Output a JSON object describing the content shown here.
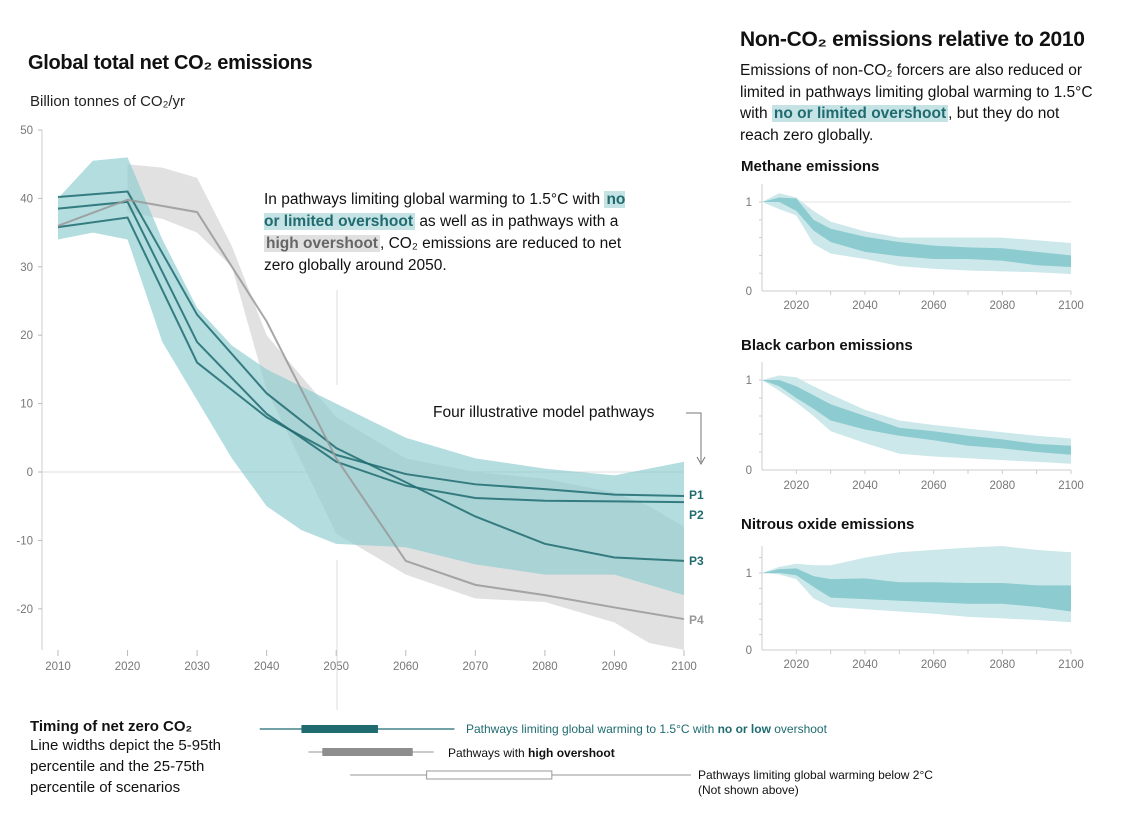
{
  "main": {
    "title": "Global total net CO₂ emissions",
    "unit_label": "Billion tonnes of CO₂/yr",
    "annotation": {
      "part1": "In pathways limiting global warming to 1.5°C with",
      "highlight1": "no or limited overshoot",
      "part2": "as well as in pathways with a",
      "highlight2": "high overshoot",
      "part3": ", CO₂ emissions are reduced to net zero globally around 2050."
    },
    "pathways_label": "Four illustrative model pathways"
  },
  "right": {
    "title": "Non-CO₂ emissions relative to 2010",
    "text1": "Emissions of non-CO₂ forcers are also reduced or limited in pathways limiting global warming to 1.5°C with",
    "highlight": "no or limited overshoot",
    "text2": ", but they do not reach zero globally."
  },
  "timing": {
    "title": "Timing of net zero CO₂",
    "description": "Line widths depict the 5-95th percentile and the 25-75th percentile of scenarios",
    "legend": [
      {
        "text": "Pathways limiting global warming to 1.5°C with ",
        "bold": "no or low",
        "after": " overshoot"
      },
      {
        "text": "Pathways with ",
        "bold": "high overshoot",
        "after": ""
      },
      {
        "text": "Pathways limiting global warming below 2°C",
        "note": "(Not shown above)"
      }
    ]
  },
  "colors": {
    "teal": "#1f6b70",
    "teal_band": "#8ccbd0",
    "teal_light": "#cde8ea",
    "gray": "#999999",
    "gray_band": "#d9d9d9"
  },
  "chart_data": [
    {
      "type": "line",
      "title": "Global total net CO₂ emissions",
      "ylabel": "Billion tonnes of CO₂/yr",
      "xlim": [
        2010,
        2100
      ],
      "ylim": [
        -26,
        50
      ],
      "xticks": [
        "2010",
        "2020",
        "2030",
        "2040",
        "2050",
        "2060",
        "2070",
        "2080",
        "2090",
        "2100"
      ],
      "yticks": [
        "50",
        "40",
        "30",
        "20",
        "10",
        "0",
        "-10",
        "-20"
      ],
      "bands": [
        {
          "name": "high overshoot",
          "color": "gray",
          "x": [
            2020,
            2025,
            2030,
            2035,
            2040,
            2050,
            2060,
            2070,
            2080,
            2090,
            2095,
            2100
          ],
          "upper": [
            45,
            44.5,
            43,
            33,
            20,
            8,
            2,
            0,
            -1,
            -3,
            -5,
            -8
          ],
          "lower": [
            38,
            37,
            35,
            30,
            12,
            -9,
            -15,
            -18.5,
            -19,
            -22,
            -25,
            -26
          ]
        },
        {
          "name": "no or limited overshoot",
          "color": "teal",
          "x": [
            2010,
            2015,
            2020,
            2025,
            2030,
            2035,
            2040,
            2045,
            2050,
            2060,
            2070,
            2080,
            2090,
            2100
          ],
          "upper": [
            40,
            45.5,
            46,
            34,
            24,
            18.5,
            15,
            12.5,
            10,
            5,
            2,
            0.5,
            -0.5,
            1.5
          ],
          "lower": [
            34,
            35,
            34,
            19,
            10.5,
            2,
            -5,
            -8.5,
            -10.5,
            -11,
            -13.5,
            -15,
            -15,
            -18
          ]
        }
      ],
      "x": [
        2010,
        2020,
        2030,
        2040,
        2050,
        2060,
        2070,
        2080,
        2090,
        2100
      ],
      "series": [
        {
          "name": "P1",
          "color": "teal",
          "values": [
            35.8,
            37.2,
            16,
            8,
            2.5,
            -0.3,
            -1.8,
            -2.5,
            -3.3,
            -3.5
          ]
        },
        {
          "name": "P2",
          "color": "teal",
          "values": [
            38.5,
            39.5,
            19,
            8.5,
            1.5,
            -2,
            -3.8,
            -4.2,
            -4.3,
            -4.4
          ]
        },
        {
          "name": "P3",
          "color": "teal",
          "values": [
            40.2,
            41,
            23,
            11.5,
            3.5,
            -1.5,
            -6.5,
            -10.5,
            -12.5,
            -13
          ]
        },
        {
          "name": "P4",
          "color": "gray",
          "values": [
            36,
            39.8,
            38,
            22,
            2,
            -13,
            -16.5,
            -18,
            -19.8,
            -21.5
          ]
        }
      ]
    },
    {
      "type": "area",
      "title": "Methane emissions",
      "xlim": [
        2010,
        2100
      ],
      "ylim": [
        0,
        1.2
      ],
      "xticks": [
        "2020",
        "2040",
        "2060",
        "2080",
        "2100"
      ],
      "yticks": [
        "1",
        "0"
      ],
      "x": [
        2010,
        2015,
        2020,
        2025,
        2030,
        2040,
        2050,
        2060,
        2070,
        2080,
        2090,
        2100
      ],
      "p95": [
        1,
        1.1,
        1.05,
        0.9,
        0.78,
        0.67,
        0.6,
        0.6,
        0.6,
        0.6,
        0.57,
        0.54
      ],
      "p75": [
        1,
        1.05,
        1.04,
        0.8,
        0.7,
        0.61,
        0.55,
        0.51,
        0.49,
        0.48,
        0.44,
        0.4
      ],
      "p25": [
        1,
        1,
        0.9,
        0.68,
        0.55,
        0.44,
        0.39,
        0.36,
        0.36,
        0.34,
        0.29,
        0.27
      ],
      "p5": [
        1,
        0.92,
        0.85,
        0.53,
        0.42,
        0.36,
        0.28,
        0.25,
        0.23,
        0.22,
        0.21,
        0.19
      ]
    },
    {
      "type": "area",
      "title": "Black carbon emissions",
      "xlim": [
        2010,
        2100
      ],
      "ylim": [
        0,
        1.2
      ],
      "xticks": [
        "2020",
        "2040",
        "2060",
        "2080",
        "2100"
      ],
      "yticks": [
        "1",
        "0"
      ],
      "x": [
        2010,
        2015,
        2020,
        2025,
        2030,
        2040,
        2050,
        2060,
        2070,
        2080,
        2090,
        2100
      ],
      "p95": [
        1,
        1.05,
        1.03,
        0.93,
        0.84,
        0.67,
        0.55,
        0.5,
        0.46,
        0.42,
        0.38,
        0.35
      ],
      "p75": [
        1,
        1,
        0.93,
        0.83,
        0.73,
        0.6,
        0.47,
        0.43,
        0.38,
        0.34,
        0.29,
        0.27
      ],
      "p25": [
        1,
        0.93,
        0.8,
        0.68,
        0.55,
        0.45,
        0.38,
        0.33,
        0.27,
        0.24,
        0.2,
        0.17
      ],
      "p5": [
        1,
        0.88,
        0.75,
        0.6,
        0.43,
        0.3,
        0.18,
        0.15,
        0.13,
        0.11,
        0.09,
        0.07
      ]
    },
    {
      "type": "area",
      "title": "Nitrous oxide emissions",
      "xlim": [
        2010,
        2100
      ],
      "ylim": [
        0,
        1.35
      ],
      "xticks": [
        "2020",
        "2040",
        "2060",
        "2080",
        "2100"
      ],
      "yticks": [
        "1",
        "0"
      ],
      "x": [
        2010,
        2015,
        2020,
        2025,
        2030,
        2040,
        2050,
        2060,
        2070,
        2080,
        2090,
        2100
      ],
      "p95": [
        1,
        1.08,
        1.12,
        1.1,
        1.1,
        1.2,
        1.27,
        1.3,
        1.33,
        1.35,
        1.3,
        1.27
      ],
      "p75": [
        1,
        1.05,
        1.06,
        0.96,
        0.92,
        0.93,
        0.88,
        0.88,
        0.87,
        0.87,
        0.84,
        0.84
      ],
      "p25": [
        1,
        1,
        0.97,
        0.82,
        0.68,
        0.66,
        0.64,
        0.62,
        0.6,
        0.6,
        0.56,
        0.5
      ],
      "p5": [
        1,
        0.98,
        0.92,
        0.67,
        0.56,
        0.53,
        0.5,
        0.47,
        0.43,
        0.41,
        0.39,
        0.36
      ]
    },
    {
      "type": "box",
      "title": "Timing of net zero CO₂",
      "boxes": [
        {
          "name": "1.5°C no or low overshoot",
          "color": "teal",
          "p5": 2039,
          "p25": 2045,
          "p75": 2056,
          "p95": 2067
        },
        {
          "name": "high overshoot",
          "color": "gray",
          "p5": 2046,
          "p25": 2048,
          "p75": 2061,
          "p95": 2064
        },
        {
          "name": "below 2°C",
          "color": "white",
          "p5": 2052,
          "p25": 2063,
          "p75": 2081,
          "p95": 2101
        }
      ]
    }
  ]
}
